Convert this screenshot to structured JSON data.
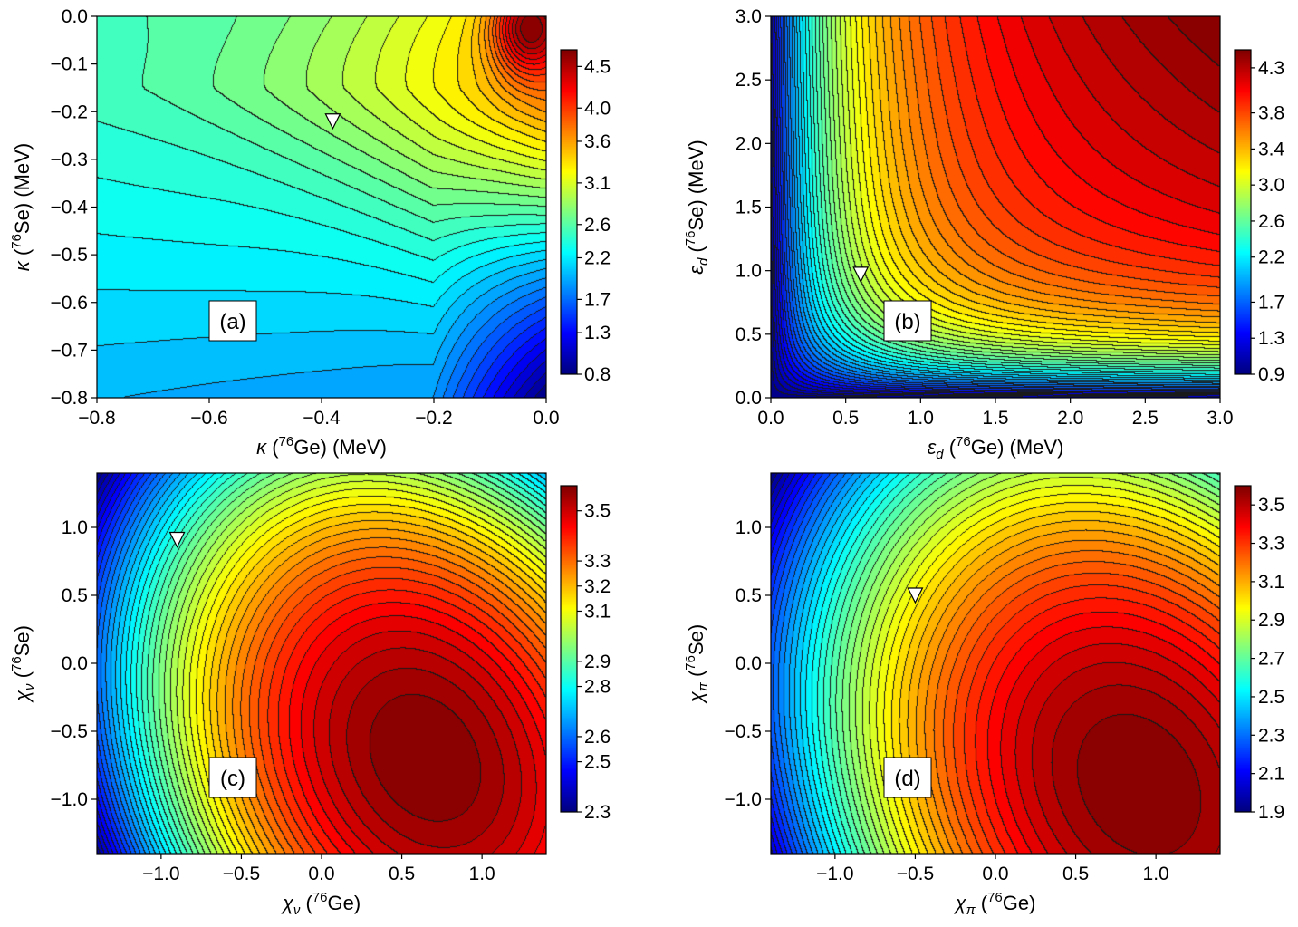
{
  "figure": {
    "layout": "2x2 grid of contour plots with colorbars",
    "colormap": "jet",
    "colors": {
      "frame": "#000000",
      "marker_fill": "#ffffff",
      "label_box": "#ffffff"
    }
  },
  "chart_data": [
    {
      "type": "contour",
      "panel_label": "(a)",
      "xlabel": {
        "symbol": "κ",
        "symbol_style": "italic",
        "iso_mass": "76",
        "iso_element": "Ge",
        "unit": "(MeV)"
      },
      "ylabel": {
        "symbol": "κ",
        "symbol_style": "italic",
        "iso_mass": "76",
        "iso_element": "Se",
        "unit": "(MeV)"
      },
      "xlim": [
        -0.8,
        0.0
      ],
      "ylim": [
        -0.8,
        0.0
      ],
      "xticks": [
        -0.8,
        -0.6,
        -0.4,
        -0.2,
        0.0
      ],
      "xtick_labels": [
        "−0.8",
        "−0.6",
        "−0.4",
        "−0.2",
        "0.0"
      ],
      "yticks": [
        -0.8,
        -0.7,
        -0.6,
        -0.5,
        -0.4,
        -0.3,
        -0.2,
        -0.1,
        0.0
      ],
      "ytick_labels": [
        "−0.8",
        "−0.7",
        "−0.6",
        "−0.5",
        "−0.4",
        "−0.3",
        "−0.2",
        "−0.1",
        "0.0"
      ],
      "colorbar": {
        "min": 0.8,
        "max": 4.7,
        "ticks": [
          0.8,
          1.3,
          1.7,
          2.2,
          2.6,
          3.1,
          3.6,
          4.0,
          4.5
        ],
        "tick_labels": [
          "0.8",
          "1.3",
          "1.7",
          "2.2",
          "2.6",
          "3.1",
          "3.6",
          "4.0",
          "4.5"
        ]
      },
      "marker": {
        "shape": "down-triangle",
        "x": -0.38,
        "y": -0.22
      },
      "contour_levels": 40,
      "surface_description": "ridge along y≈-0.15 rising toward top-right maximum near (-0.03,-0.02); low values bottom-right and bottom-left"
    },
    {
      "type": "contour",
      "panel_label": "(b)",
      "xlabel": {
        "symbol": "ε",
        "subscript": "d",
        "symbol_style": "italic",
        "iso_mass": "76",
        "iso_element": "Ge",
        "unit": "(MeV)"
      },
      "ylabel": {
        "symbol": "ε",
        "subscript": "d",
        "symbol_style": "italic",
        "iso_mass": "76",
        "iso_element": "Se",
        "unit": "(MeV)"
      },
      "xlim": [
        0.0,
        3.0
      ],
      "ylim": [
        0.0,
        3.0
      ],
      "xticks": [
        0.0,
        0.5,
        1.0,
        1.5,
        2.0,
        2.5,
        3.0
      ],
      "xtick_labels": [
        "0.0",
        "0.5",
        "1.0",
        "1.5",
        "2.0",
        "2.5",
        "3.0"
      ],
      "yticks": [
        0.0,
        0.5,
        1.0,
        1.5,
        2.0,
        2.5,
        3.0
      ],
      "ytick_labels": [
        "0.0",
        "0.5",
        "1.0",
        "1.5",
        "2.0",
        "2.5",
        "3.0"
      ],
      "colorbar": {
        "min": 0.9,
        "max": 4.5,
        "ticks": [
          0.9,
          1.3,
          1.7,
          2.2,
          2.6,
          3.0,
          3.4,
          3.8,
          4.3
        ],
        "tick_labels": [
          "0.9",
          "1.3",
          "1.7",
          "2.2",
          "2.6",
          "3.0",
          "3.4",
          "3.8",
          "4.3"
        ]
      },
      "marker": {
        "shape": "down-triangle",
        "x": 0.6,
        "y": 0.97
      },
      "contour_levels": 50,
      "surface_description": "increases with both parameters, maximum at top-right corner, minimum along bottom and left edges"
    },
    {
      "type": "contour",
      "panel_label": "(c)",
      "xlabel": {
        "symbol": "χ",
        "subscript": "ν",
        "symbol_style": "italic",
        "iso_mass": "76",
        "iso_element": "Ge",
        "unit": ""
      },
      "ylabel": {
        "symbol": "χ",
        "subscript": "ν",
        "symbol_style": "italic",
        "iso_mass": "76",
        "iso_element": "Se",
        "unit": ""
      },
      "xlim": [
        -1.4,
        1.4
      ],
      "ylim": [
        -1.4,
        1.4
      ],
      "xticks": [
        -1.0,
        -0.5,
        0.0,
        0.5,
        1.0
      ],
      "xtick_labels": [
        "−1.0",
        "−0.5",
        "0.0",
        "0.5",
        "1.0"
      ],
      "yticks": [
        -1.0,
        -0.5,
        0.0,
        0.5,
        1.0
      ],
      "ytick_labels": [
        "−1.0",
        "−0.5",
        "0.0",
        "0.5",
        "1.0"
      ],
      "colorbar": {
        "min": 2.3,
        "max": 3.6,
        "ticks": [
          2.3,
          2.5,
          2.6,
          2.8,
          2.9,
          3.1,
          3.2,
          3.3,
          3.5
        ],
        "tick_labels": [
          "2.3",
          "2.5",
          "2.6",
          "2.8",
          "2.9",
          "3.1",
          "3.2",
          "3.3",
          "3.5"
        ]
      },
      "marker": {
        "shape": "down-triangle",
        "x": -0.9,
        "y": 0.91
      },
      "contour_levels": 45,
      "surface_description": "elliptical maximum centered near (0.65,-0.7); minimum at top-left corner"
    },
    {
      "type": "contour",
      "panel_label": "(d)",
      "xlabel": {
        "symbol": "χ",
        "subscript": "π",
        "symbol_style": "italic",
        "iso_mass": "76",
        "iso_element": "Ge",
        "unit": ""
      },
      "ylabel": {
        "symbol": "χ",
        "subscript": "π",
        "symbol_style": "italic",
        "iso_mass": "76",
        "iso_element": "Se",
        "unit": ""
      },
      "xlim": [
        -1.4,
        1.4
      ],
      "ylim": [
        -1.4,
        1.4
      ],
      "xticks": [
        -1.0,
        -0.5,
        0.0,
        0.5,
        1.0
      ],
      "xtick_labels": [
        "−1.0",
        "−0.5",
        "0.0",
        "0.5",
        "1.0"
      ],
      "yticks": [
        -1.0,
        -0.5,
        0.0,
        0.5,
        1.0
      ],
      "ytick_labels": [
        "−1.0",
        "−0.5",
        "0.0",
        "0.5",
        "1.0"
      ],
      "colorbar": {
        "min": 1.9,
        "max": 3.6,
        "ticks": [
          1.9,
          2.1,
          2.3,
          2.5,
          2.7,
          2.9,
          3.1,
          3.3,
          3.5
        ],
        "tick_labels": [
          "1.9",
          "2.1",
          "2.3",
          "2.5",
          "2.7",
          "2.9",
          "3.1",
          "3.3",
          "3.5"
        ]
      },
      "marker": {
        "shape": "down-triangle",
        "x": -0.5,
        "y": 0.5
      },
      "contour_levels": 45,
      "surface_description": "elliptical maximum centered near (0.9,-0.9); minimum at top-left corner"
    }
  ]
}
